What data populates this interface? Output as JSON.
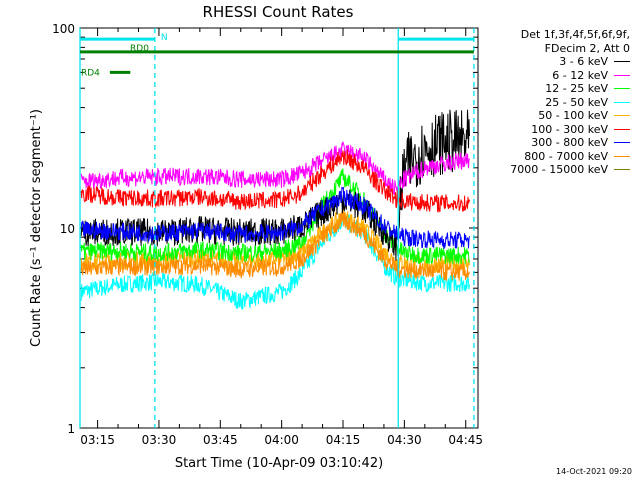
{
  "chart_data": {
    "type": "line",
    "title": "RHESSI Count Rates",
    "xlabel": "Start Time (10-Apr-09 03:10:42)",
    "ylabel": "Count Rate (s⁻¹ detector segment⁻¹)",
    "yscale": "log",
    "ylim": [
      1,
      100
    ],
    "y_ticks": [
      {
        "value": 1,
        "label": "1"
      },
      {
        "value": 10,
        "label": "10"
      },
      {
        "value": 100,
        "label": "100"
      }
    ],
    "xlim": [
      "03:10:42",
      "04:48:00"
    ],
    "x_ticks": [
      {
        "value": "03:15",
        "label": "03:15"
      },
      {
        "value": "03:30",
        "label": "03:30"
      },
      {
        "value": "03:45",
        "label": "03:45"
      },
      {
        "value": "04:00",
        "label": "04:00"
      },
      {
        "value": "04:15",
        "label": "04:15"
      },
      {
        "value": "04:30",
        "label": "04:30"
      },
      {
        "value": "04:45",
        "label": "04:45"
      }
    ],
    "legend_header": [
      "Det 1f,3f,4f,5f,6f,9f,",
      "FDecim 2, Att 0"
    ],
    "legend_position": "right",
    "series": [
      {
        "name": "3 - 6 keV",
        "color": "#000000",
        "x": [
          "03:11",
          "03:20",
          "03:30",
          "03:40",
          "03:50",
          "04:00",
          "04:05",
          "04:10",
          "04:15",
          "04:20",
          "04:25",
          "04:28",
          "04:30",
          "04:35",
          "04:40",
          "04:46"
        ],
        "y": [
          9.5,
          9.6,
          9.5,
          9.8,
          9.5,
          9.6,
          10.2,
          12.0,
          14.0,
          12.5,
          9.5,
          8.0,
          20,
          25,
          27,
          27
        ]
      },
      {
        "name": "6 - 12 keV",
        "color": "#ff00ff",
        "x": [
          "03:11",
          "03:20",
          "03:30",
          "03:40",
          "03:50",
          "04:00",
          "04:05",
          "04:10",
          "04:15",
          "04:20",
          "04:25",
          "04:28",
          "04:30",
          "04:35",
          "04:40",
          "04:46"
        ],
        "y": [
          17,
          17.8,
          18,
          18.2,
          17.5,
          17.5,
          18.8,
          21.5,
          24.5,
          22.5,
          17.5,
          15.5,
          17.5,
          20,
          21,
          22
        ]
      },
      {
        "name": "12 - 25 keV",
        "color": "#00ff00",
        "x": [
          "03:11",
          "03:20",
          "03:30",
          "03:40",
          "03:50",
          "04:00",
          "04:05",
          "04:10",
          "04:15",
          "04:20",
          "04:25",
          "04:28",
          "04:30",
          "04:35",
          "04:40",
          "04:46"
        ],
        "y": [
          7.6,
          7.7,
          7.5,
          7.8,
          7.5,
          7.7,
          8.5,
          13,
          18,
          14,
          9.5,
          8.0,
          7.5,
          7.3,
          7.3,
          7.3
        ]
      },
      {
        "name": "25 - 50 keV",
        "color": "#00ffff",
        "x": [
          "03:11",
          "03:20",
          "03:30",
          "03:40",
          "03:50",
          "04:00",
          "04:05",
          "04:10",
          "04:15",
          "04:20",
          "04:25",
          "04:28",
          "04:30",
          "04:35",
          "04:40",
          "04:46"
        ],
        "y": [
          4.8,
          5.2,
          5.4,
          5.2,
          4.3,
          4.8,
          6.0,
          8.5,
          11.0,
          9.5,
          6.5,
          5.6,
          5.5,
          5.3,
          5.3,
          5.3
        ]
      },
      {
        "name": "50 - 100 keV",
        "color": "#ffb000",
        "x": [
          "03:11",
          "03:20",
          "03:30",
          "03:40",
          "03:50",
          "04:00",
          "04:05",
          "04:10",
          "04:15",
          "04:20",
          "04:25",
          "04:28",
          "04:30",
          "04:35",
          "04:40",
          "04:46"
        ],
        "y": [
          6.8,
          6.9,
          6.9,
          7.1,
          6.8,
          7.0,
          7.6,
          9.5,
          11.5,
          10,
          7.6,
          6.8,
          6.7,
          6.6,
          6.6,
          6.6
        ]
      },
      {
        "name": "100 - 300 keV",
        "color": "#ff0000",
        "x": [
          "03:11",
          "03:20",
          "03:30",
          "03:40",
          "03:50",
          "04:00",
          "04:05",
          "04:10",
          "04:15",
          "04:20",
          "04:25",
          "04:28",
          "04:30",
          "04:35",
          "04:40",
          "04:46"
        ],
        "y": [
          15,
          14.2,
          14,
          14.3,
          13.6,
          13.8,
          15,
          19,
          23,
          20,
          15.5,
          14,
          13.6,
          13.4,
          13.3,
          13.3
        ]
      },
      {
        "name": "300 - 800 keV",
        "color": "#0000ff",
        "x": [
          "03:11",
          "03:20",
          "03:30",
          "03:40",
          "03:50",
          "04:00",
          "04:05",
          "04:10",
          "04:15",
          "04:20",
          "04:25",
          "04:28",
          "04:30",
          "04:35",
          "04:40",
          "04:46"
        ],
        "y": [
          9.8,
          9.6,
          9.4,
          9.7,
          9.3,
          9.5,
          10.3,
          12.5,
          14.5,
          13,
          10.3,
          9.3,
          9.0,
          8.8,
          8.7,
          8.7
        ]
      },
      {
        "name": "800 - 7000 keV",
        "color": "#ff8c00",
        "x": [
          "03:11",
          "03:20",
          "03:30",
          "03:40",
          "03:50",
          "04:00",
          "04:05",
          "04:10",
          "04:15",
          "04:20",
          "04:25",
          "04:28",
          "04:30",
          "04:35",
          "04:40",
          "04:46"
        ],
        "y": [
          6.2,
          6.4,
          6.4,
          6.5,
          6.2,
          6.4,
          7.0,
          9.0,
          11.0,
          9.5,
          7.0,
          6.3,
          6.2,
          6.1,
          6.0,
          6.0
        ]
      },
      {
        "name": "7000 - 15000 keV",
        "color": "#808000",
        "x": [],
        "y": []
      }
    ],
    "annotations": [
      {
        "text": "N",
        "color": "#00e5ee"
      },
      {
        "text": "RD0",
        "color": "#008000"
      },
      {
        "text": "RD4",
        "color": "#008000"
      }
    ],
    "vertical_markers": {
      "solid": [
        "03:10:42",
        "04:28:30"
      ],
      "dashed": [
        "03:29:00",
        "04:47:00"
      ],
      "color": "#00e5ee"
    },
    "bars": [
      {
        "name": "N",
        "color": "#00e5ee",
        "segments": [
          [
            "03:10:42",
            "03:29:00"
          ],
          [
            "04:28:30",
            "04:47:00"
          ]
        ],
        "level": 88
      },
      {
        "name": "RD0",
        "color": "#008000",
        "segments": [
          [
            "03:10:42",
            "04:47:00"
          ]
        ],
        "level": 76
      },
      {
        "name": "RD4",
        "color": "#008000",
        "segments": [
          [
            "03:18:00",
            "03:23:00"
          ]
        ],
        "level": 60
      }
    ],
    "footer_stamp": "14-Oct-2021 09:20"
  }
}
